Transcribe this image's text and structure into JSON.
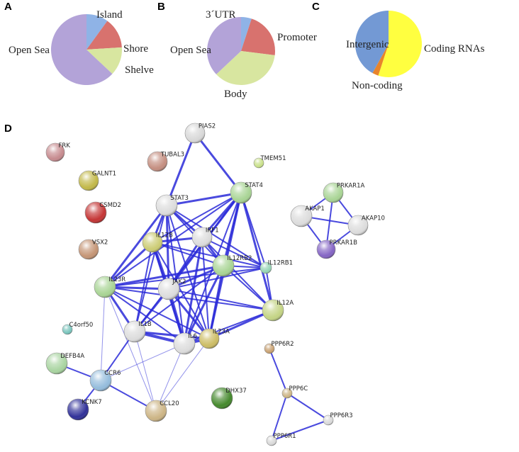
{
  "chart_data": [
    {
      "type": "pie",
      "title": "A",
      "categories": [
        "Island",
        "Shore",
        "Shelve",
        "Open Sea"
      ],
      "values": [
        10,
        14,
        13,
        63
      ],
      "colors": [
        "#8fb3e6",
        "#d8726e",
        "#d8e6a0",
        "#b3a3d8"
      ]
    },
    {
      "type": "pie",
      "title": "B",
      "categories": [
        "3´UTR",
        "Promoter",
        "Body",
        "Open Sea"
      ],
      "values": [
        5,
        22,
        36,
        37
      ],
      "colors": [
        "#8fb3e6",
        "#d8726e",
        "#d8e6a0",
        "#b3a3d8"
      ]
    },
    {
      "type": "pie",
      "title": "C",
      "categories": [
        "Coding RNAs",
        "Non-coding",
        "Intergenic"
      ],
      "values": [
        55,
        3,
        42
      ],
      "colors": [
        "#ffff40",
        "#e8842c",
        "#7399d4"
      ]
    }
  ],
  "network": {
    "label": "D",
    "nodes": [
      {
        "label": "PIAS2"
      },
      {
        "label": "FRK"
      },
      {
        "label": "TUBAL3"
      },
      {
        "label": "TMEM51"
      },
      {
        "label": "GALNT1"
      },
      {
        "label": "STAT3"
      },
      {
        "label": "STAT4"
      },
      {
        "label": "PRKAR1A"
      },
      {
        "label": "CSMD2"
      },
      {
        "label": "AKAP1"
      },
      {
        "label": "AKAP10"
      },
      {
        "label": "IL12B"
      },
      {
        "label": "IRF1"
      },
      {
        "label": "PRKAR1B"
      },
      {
        "label": "VSX2"
      },
      {
        "label": "IL12RB2"
      },
      {
        "label": "IL12RB1"
      },
      {
        "label": "IL23R"
      },
      {
        "label": "JAK2"
      },
      {
        "label": "IL12A"
      },
      {
        "label": "C4orf50"
      },
      {
        "label": "IL1B"
      },
      {
        "label": "IL6"
      },
      {
        "label": "IL23A"
      },
      {
        "label": "PPP6R2"
      },
      {
        "label": "DEFB4A"
      },
      {
        "label": "CCR6"
      },
      {
        "label": "PPP6C"
      },
      {
        "label": "DHX37"
      },
      {
        "label": "KCNK7"
      },
      {
        "label": "CCL20"
      },
      {
        "label": "PPP6R3"
      },
      {
        "label": "PPP6R1"
      }
    ]
  }
}
